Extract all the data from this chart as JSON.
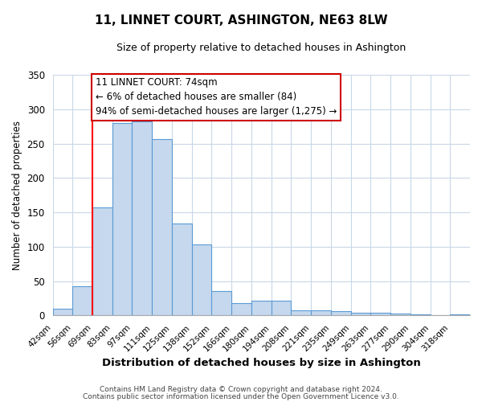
{
  "title": "11, LINNET COURT, ASHINGTON, NE63 8LW",
  "subtitle": "Size of property relative to detached houses in Ashington",
  "xlabel": "Distribution of detached houses by size in Ashington",
  "ylabel": "Number of detached properties",
  "bin_labels": [
    "42sqm",
    "56sqm",
    "69sqm",
    "83sqm",
    "97sqm",
    "111sqm",
    "125sqm",
    "138sqm",
    "152sqm",
    "166sqm",
    "180sqm",
    "194sqm",
    "208sqm",
    "221sqm",
    "235sqm",
    "249sqm",
    "263sqm",
    "277sqm",
    "290sqm",
    "304sqm",
    "318sqm"
  ],
  "bar_heights": [
    10,
    42,
    157,
    280,
    282,
    257,
    134,
    103,
    36,
    18,
    22,
    22,
    8,
    7,
    6,
    4,
    4,
    3,
    2,
    1,
    2
  ],
  "bar_color": "#c5d8ed",
  "bar_edge_color": "#5b9bd5",
  "ylim": [
    0,
    350
  ],
  "yticks": [
    0,
    50,
    100,
    150,
    200,
    250,
    300,
    350
  ],
  "red_line_bin_index": 2,
  "annotation_title": "11 LINNET COURT: 74sqm",
  "annotation_line1": "← 6% of detached houses are smaller (84)",
  "annotation_line2": "94% of semi-detached houses are larger (1,275) →",
  "annotation_box_color": "#ffffff",
  "annotation_box_edge": "#cc0000",
  "footer1": "Contains HM Land Registry data © Crown copyright and database right 2024.",
  "footer2": "Contains public sector information licensed under the Open Government Licence v3.0.",
  "background_color": "#ffffff",
  "grid_color": "#c8d8e8"
}
